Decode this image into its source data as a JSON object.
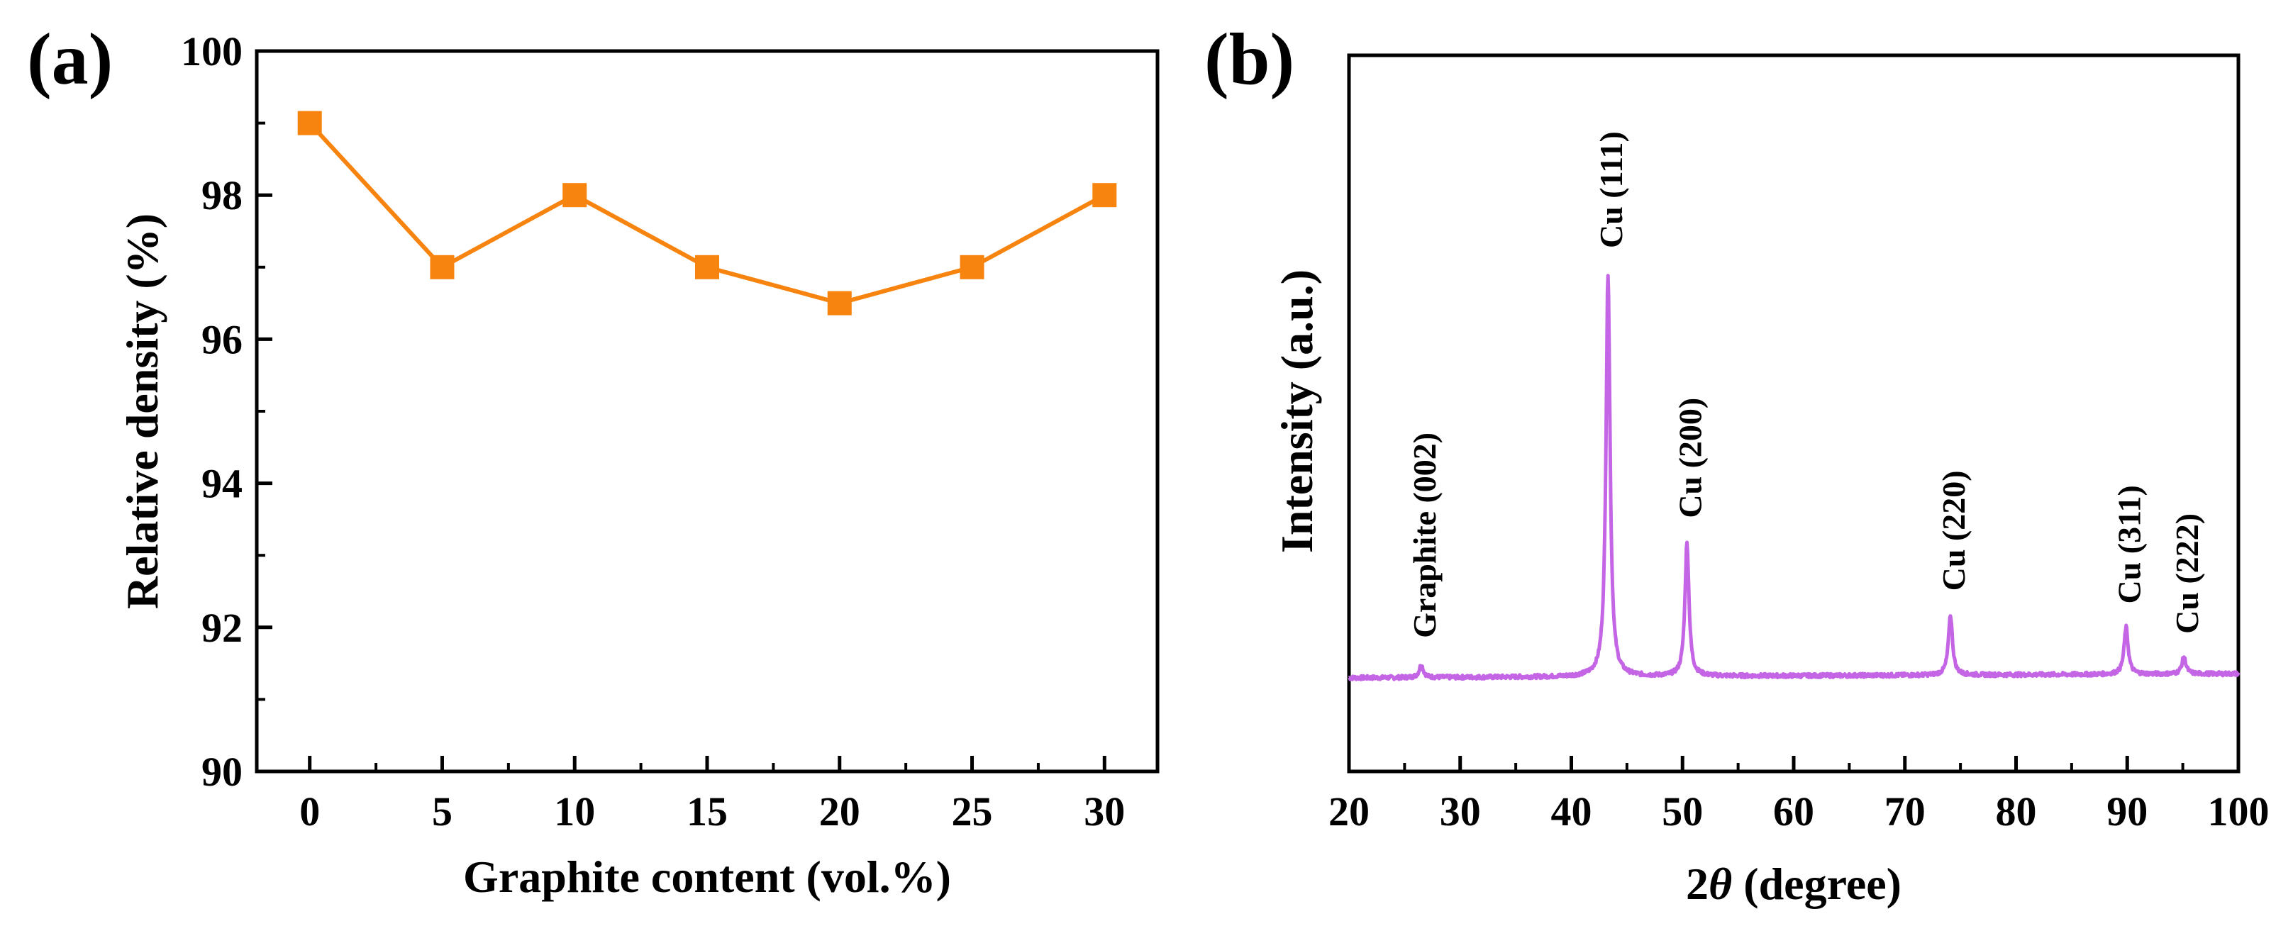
{
  "panels": [
    {
      "panel_label": "(a)",
      "chart_data": {
        "type": "line",
        "title": "",
        "xlabel": "Graphite content (vol.%)",
        "ylabel": "Relative density (%)",
        "x": [
          0,
          5,
          10,
          15,
          20,
          25,
          30
        ],
        "series": [
          {
            "values": [
              99,
              97,
              98,
              97,
              96.5,
              97,
              98
            ],
            "color": "#F7840F",
            "marker": "square"
          }
        ],
        "xlim": [
          -2,
          32
        ],
        "ylim": [
          90,
          100
        ],
        "xticks": [
          "0",
          "5",
          "10",
          "15",
          "20",
          "25",
          "30"
        ],
        "yticks": [
          "90",
          "92",
          "94",
          "96",
          "98",
          "100"
        ],
        "grid": false
      }
    },
    {
      "panel_label": "(b)",
      "chart_data": {
        "type": "line",
        "title": "",
        "xlabel_prefix": "2",
        "xlabel_symbol": "θ",
        "xlabel_suffix": " (degree)",
        "ylabel": "Intensity (a.u.)",
        "xlim": [
          20,
          100
        ],
        "xticks": [
          "20",
          "30",
          "40",
          "50",
          "60",
          "70",
          "80",
          "90",
          "100"
        ],
        "ytick_labels_shown": false,
        "color": "#C465E6",
        "baseline_intensity": 6,
        "peaks": [
          {
            "label": "Graphite (002)",
            "x": 26.5,
            "intensity": 9
          },
          {
            "label": "Cu (111)",
            "x": 43.3,
            "intensity": 100
          },
          {
            "label": "Cu (200)",
            "x": 50.4,
            "intensity": 37
          },
          {
            "label": "Cu (220)",
            "x": 74.1,
            "intensity": 20
          },
          {
            "label": "Cu (311)",
            "x": 89.9,
            "intensity": 17
          },
          {
            "label": "Cu (222)",
            "x": 95.1,
            "intensity": 10
          }
        ],
        "grid": false
      }
    }
  ]
}
